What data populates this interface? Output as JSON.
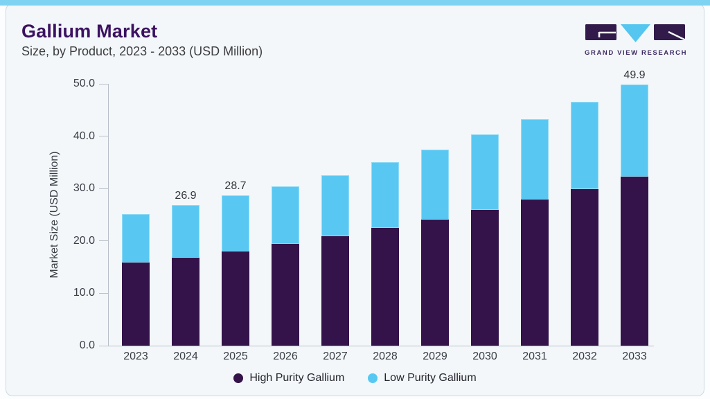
{
  "page": {
    "top_strip_color": "#7ed3f3",
    "card_background": "#f3f7fa"
  },
  "header": {
    "title": "Gallium Market",
    "subtitle": "Size, by Product, 2023 - 2033 (USD Million)"
  },
  "logo": {
    "brand": "GRAND VIEW RESEARCH",
    "dark_color": "#321a4a",
    "blue_color": "#55c6ef"
  },
  "chart_data": {
    "type": "bar",
    "stacked": true,
    "title": "Gallium Market",
    "subtitle": "Size, by Product, 2023 - 2033 (USD Million)",
    "categories": [
      "2023",
      "2024",
      "2025",
      "2026",
      "2027",
      "2028",
      "2029",
      "2030",
      "2031",
      "2032",
      "2033"
    ],
    "series": [
      {
        "name": "High Purity Gallium",
        "color": "#331349",
        "values": [
          15.9,
          16.8,
          18.0,
          19.4,
          20.9,
          22.5,
          24.1,
          25.9,
          27.9,
          29.9,
          32.3
        ]
      },
      {
        "name": "Low Purity Gallium",
        "color": "#58c8f2",
        "values": [
          9.2,
          10.1,
          10.7,
          11.0,
          11.6,
          12.5,
          13.4,
          14.4,
          15.3,
          16.6,
          17.6
        ]
      }
    ],
    "totals": [
      25.1,
      26.9,
      28.7,
      30.4,
      32.5,
      35.0,
      37.5,
      40.3,
      43.2,
      46.5,
      49.9
    ],
    "bar_labels": [
      "",
      "26.9",
      "28.7",
      "",
      "",
      "",
      "",
      "",
      "",
      "",
      "49.9"
    ],
    "ylabel": "Market Size (USD Million)",
    "yticks": [
      "0.0",
      "10.0",
      "20.0",
      "30.0",
      "40.0",
      "50.0"
    ],
    "ylim": [
      0,
      50
    ],
    "grid": false,
    "legend_position": "bottom",
    "axis_color": "#b9c0c9",
    "label_color": "#3a3f46"
  }
}
